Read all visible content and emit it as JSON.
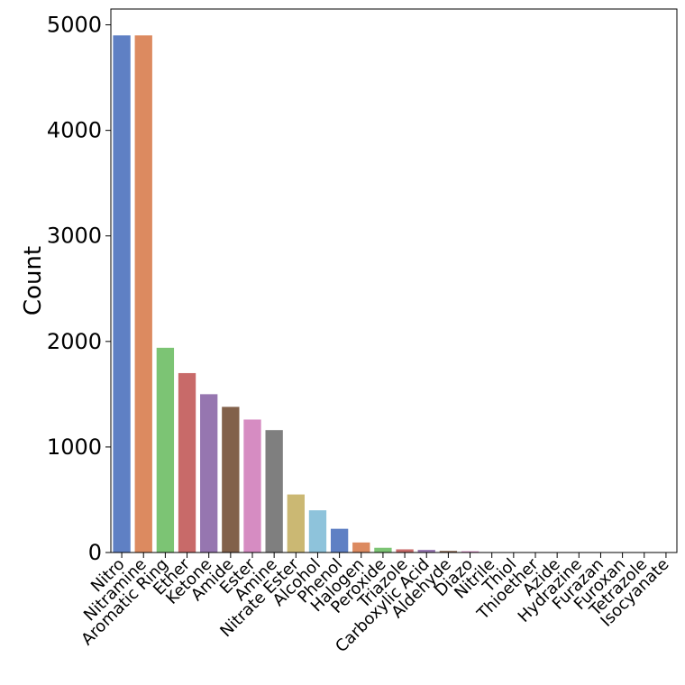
{
  "chart_data": {
    "type": "bar",
    "title": "",
    "xlabel": "",
    "ylabel": "Count",
    "ylim": [
      0,
      5150
    ],
    "yticks": [
      0,
      1000,
      2000,
      3000,
      4000,
      5000
    ],
    "grid": false,
    "categories": [
      "Nitro",
      "Nitramine",
      "Aromatic Ring",
      "Ether",
      "Ketone",
      "Amide",
      "Ester",
      "Amine",
      "Nitrate Ester",
      "Alcohol",
      "Phenol",
      "Halogen",
      "Peroxide",
      "Triazole",
      "Carboxylic Acid",
      "Aldehyde",
      "Diazo",
      "Nitrile",
      "Thiol",
      "Thioether",
      "Azide",
      "Hydrazine",
      "Furazan",
      "Furoxan",
      "Tetrazole",
      "Isocyanate"
    ],
    "values": [
      4900,
      4900,
      1940,
      1700,
      1500,
      1380,
      1260,
      1160,
      550,
      400,
      225,
      95,
      45,
      30,
      25,
      15,
      12,
      0,
      0,
      0,
      0,
      0,
      0,
      0,
      0,
      0
    ],
    "colors": [
      "#5f80c4",
      "#dc8a60",
      "#7cc474",
      "#c86a69",
      "#9676b0",
      "#82614a",
      "#d68cc2",
      "#7f7f7f",
      "#cbb873",
      "#8ec3db",
      "#5f80c4",
      "#dc8a60",
      "#7cc474",
      "#c86a69",
      "#9676b0",
      "#82614a",
      "#d68cc2",
      "#7f7f7f",
      "#cbb873",
      "#8ec3db",
      "#5f80c4",
      "#dc8a60",
      "#7cc474",
      "#c86a69",
      "#9676b0",
      "#82614a"
    ]
  }
}
